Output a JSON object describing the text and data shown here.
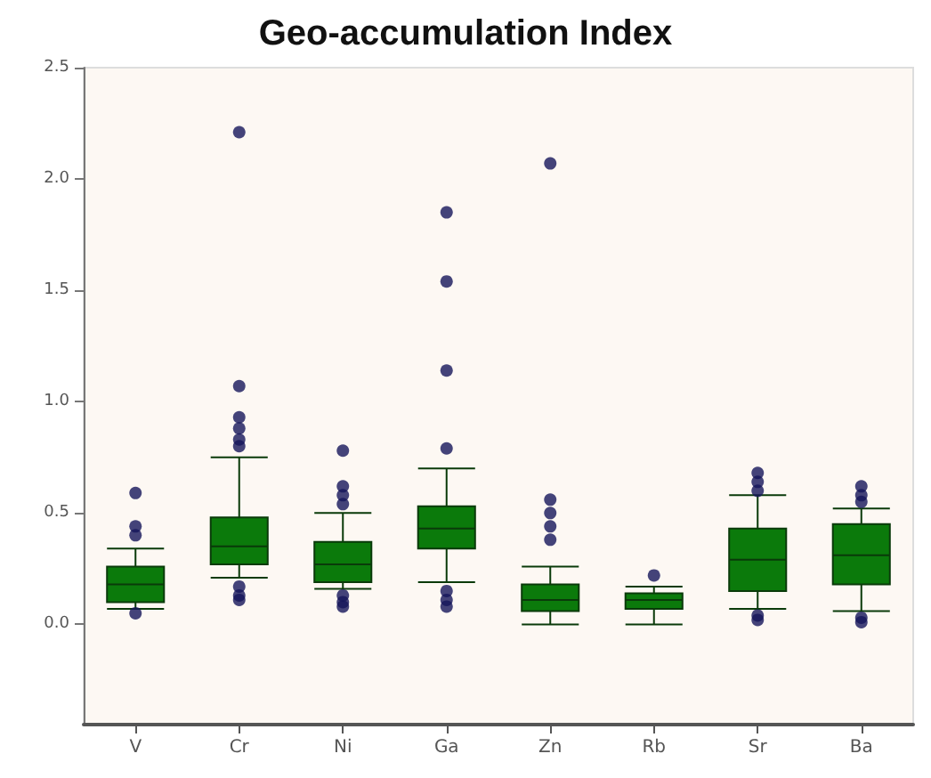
{
  "chart_data": {
    "type": "box",
    "title": "Geo-accumulation Index",
    "categories": [
      "V",
      "Cr",
      "Ni",
      "Ga",
      "Zn",
      "Rb",
      "Sr",
      "Ba"
    ],
    "color": "#0b7a0b",
    "boxes": [
      {
        "low": 0.07,
        "q1": 0.1,
        "median": 0.18,
        "q3": 0.26,
        "high": 0.34,
        "outliers": [
          0.59,
          0.44,
          0.4,
          0.05
        ]
      },
      {
        "low": 0.21,
        "q1": 0.27,
        "median": 0.35,
        "q3": 0.48,
        "high": 0.75,
        "outliers": [
          2.21,
          1.07,
          0.93,
          0.88,
          0.83,
          0.8,
          0.17,
          0.13,
          0.11
        ]
      },
      {
        "low": 0.16,
        "q1": 0.19,
        "median": 0.27,
        "q3": 0.37,
        "high": 0.5,
        "outliers": [
          0.78,
          0.62,
          0.58,
          0.54,
          0.13,
          0.1,
          0.08
        ]
      },
      {
        "low": 0.19,
        "q1": 0.34,
        "median": 0.43,
        "q3": 0.53,
        "high": 0.7,
        "outliers": [
          1.85,
          1.54,
          1.14,
          0.79,
          0.15,
          0.11,
          0.08
        ]
      },
      {
        "low": 0.0,
        "q1": 0.06,
        "median": 0.11,
        "q3": 0.18,
        "high": 0.26,
        "outliers": [
          2.07,
          0.56,
          0.5,
          0.44,
          0.38
        ]
      },
      {
        "low": 0.0,
        "q1": 0.07,
        "median": 0.11,
        "q3": 0.14,
        "high": 0.17,
        "outliers": [
          0.22
        ]
      },
      {
        "low": 0.07,
        "q1": 0.15,
        "median": 0.29,
        "q3": 0.43,
        "high": 0.58,
        "outliers": [
          0.68,
          0.64,
          0.6,
          0.04,
          0.02
        ]
      },
      {
        "low": 0.06,
        "q1": 0.18,
        "median": 0.31,
        "q3": 0.45,
        "high": 0.52,
        "outliers": [
          0.62,
          0.58,
          0.55,
          0.03,
          0.01
        ]
      }
    ],
    "ylim": [
      -0.45,
      2.5
    ],
    "yticks": [
      {
        "value": 0,
        "label": "0.0"
      },
      0.5,
      {
        "value": 1,
        "label": "1.0"
      },
      1.5,
      {
        "value": 2,
        "label": "2.0"
      },
      2.5
    ],
    "grid": false
  }
}
